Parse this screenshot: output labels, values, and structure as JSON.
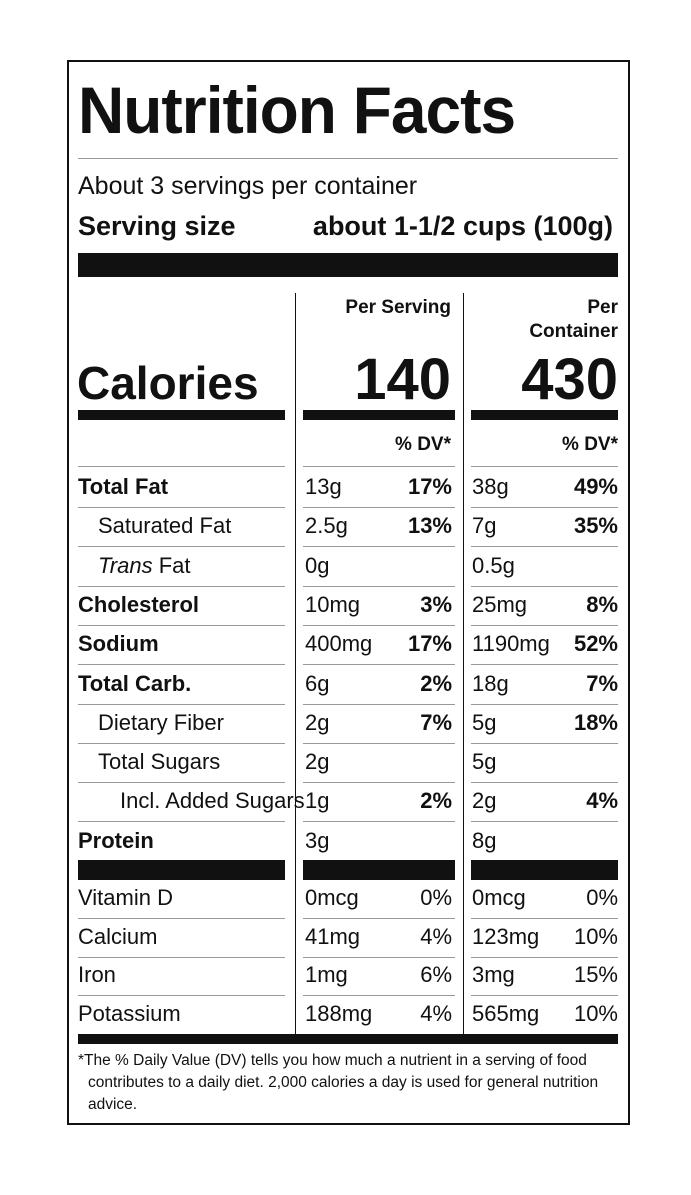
{
  "title": "Nutrition Facts",
  "servings": "About 3 servings per container",
  "serving_size_label": "Serving size",
  "serving_size": "about 1-1/2 cups (100g)",
  "columns": [
    "Per Serving",
    "Per Container"
  ],
  "calories_label": "Calories",
  "calories": [
    140,
    430
  ],
  "dv_header": "% DV*",
  "rows": [
    {
      "name": "Total Fat",
      "bold": true,
      "level": 0,
      "serving": "13g",
      "serving_dv": "17%",
      "container": "38g",
      "container_dv": "49%"
    },
    {
      "name": "Saturated Fat",
      "bold": false,
      "level": 1,
      "serving": "2.5g",
      "serving_dv": "13%",
      "container": "7g",
      "container_dv": "35%"
    },
    {
      "name_italic": "Trans",
      "name": "Fat",
      "bold": false,
      "level": 1,
      "serving": "0g",
      "container": "0.5g"
    },
    {
      "name": "Cholesterol",
      "bold": true,
      "level": 0,
      "serving": "10mg",
      "serving_dv": "3%",
      "container": "25mg",
      "container_dv": "8%"
    },
    {
      "name": "Sodium",
      "bold": true,
      "level": 0,
      "serving": "400mg",
      "serving_dv": "17%",
      "container": "1190mg",
      "container_dv": "52%"
    },
    {
      "name": "Total Carb.",
      "bold": true,
      "level": 0,
      "serving": "6g",
      "serving_dv": "2%",
      "container": "18g",
      "container_dv": "7%"
    },
    {
      "name": "Dietary Fiber",
      "bold": false,
      "level": 1,
      "serving": "2g",
      "serving_dv": "7%",
      "container": "5g",
      "container_dv": "18%"
    },
    {
      "name": "Total Sugars",
      "bold": false,
      "level": 1,
      "serving": "2g",
      "container": "5g"
    },
    {
      "name": "Incl. Added Sugars",
      "bold": false,
      "level": 2,
      "serving": "1g",
      "serving_dv": "2%",
      "container": "2g",
      "container_dv": "4%"
    },
    {
      "name": "Protein",
      "bold": true,
      "level": 0,
      "serving": "3g",
      "container": "8g"
    }
  ],
  "vitamins": [
    {
      "name": "Vitamin D",
      "serving": "0mcg",
      "serving_dv": "0%",
      "container": "0mcg",
      "container_dv": "0%"
    },
    {
      "name": "Calcium",
      "serving": "41mg",
      "serving_dv": "4%",
      "container": "123mg",
      "container_dv": "10%"
    },
    {
      "name": "Iron",
      "serving": "1mg",
      "serving_dv": "6%",
      "container": "3mg",
      "container_dv": "15%"
    },
    {
      "name": "Potassium",
      "serving": "188mg",
      "serving_dv": "4%",
      "container": "565mg",
      "container_dv": "10%"
    }
  ],
  "footnote": "*The % Daily Value (DV) tells you how much a nutrient in a serving of food contributes to a daily diet. 2,000 calories a day is used for general nutrition advice."
}
